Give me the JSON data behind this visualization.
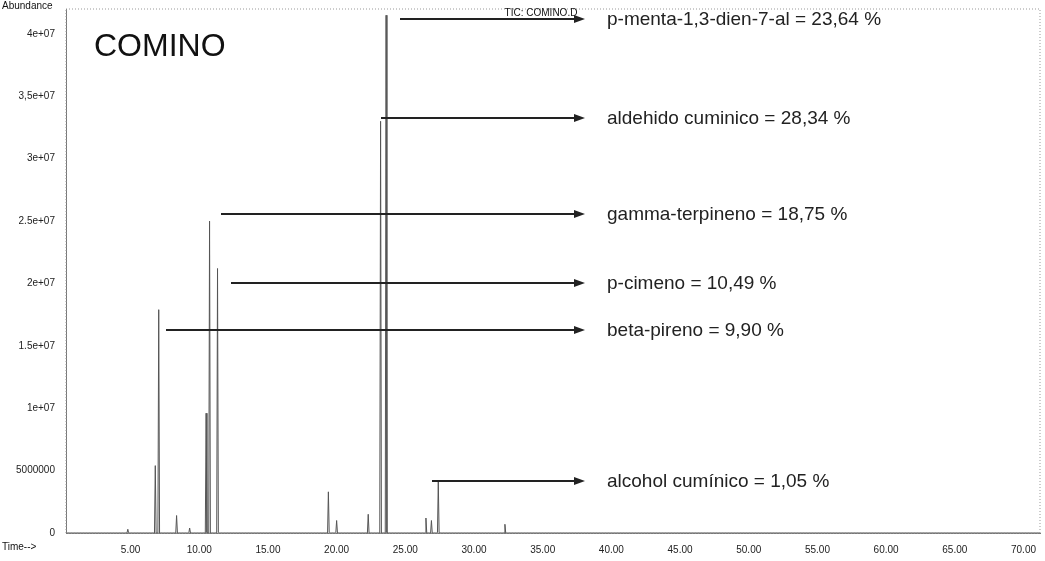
{
  "chart_data": {
    "type": "line",
    "title": "COMINO",
    "subtitle": "TIC: COMINO.D",
    "xlabel": "Time-->",
    "ylabel": "Abundance",
    "x": [
      0.3,
      4.74,
      4.8,
      4.86,
      6.74,
      6.8,
      6.86,
      6.99,
      7.05,
      7.11,
      8.29,
      8.35,
      8.41,
      9.24,
      9.3,
      9.36,
      10.44,
      10.5,
      10.56,
      10.69,
      10.75,
      10.81,
      11.27,
      11.33,
      11.39,
      19.34,
      19.4,
      19.46,
      19.94,
      20.0,
      20.06,
      22.24,
      22.3,
      22.36,
      23.14,
      23.2,
      23.26,
      23.54,
      23.6,
      23.66,
      26.44,
      26.5,
      26.56,
      26.84,
      26.9,
      26.96,
      27.34,
      27.4,
      27.46,
      32.19,
      32.25,
      32.31,
      71.2
    ],
    "series": [
      {
        "color": "#555555",
        "values": [
          0,
          0,
          300000,
          0,
          0,
          5400000,
          0,
          0,
          17900000,
          0,
          0,
          1400000,
          0,
          0,
          400000,
          0,
          0,
          9600000,
          0,
          0,
          25000000,
          0,
          0,
          21200000,
          0,
          0,
          3300000,
          0,
          0,
          1000000,
          0,
          0,
          1500000,
          0,
          0,
          33000000,
          0,
          0,
          41500000,
          0,
          0,
          1200000,
          0,
          0,
          1000000,
          0,
          0,
          4100000,
          0,
          0,
          700000,
          0,
          0
        ]
      }
    ],
    "xlim": [
      0.3,
      71.2
    ],
    "ylim": [
      0,
      42000000
    ],
    "xticks": [
      {
        "value": 5,
        "label": "5.00"
      },
      {
        "value": 10,
        "label": "10.00"
      },
      {
        "value": 15,
        "label": "15.00"
      },
      {
        "value": 20,
        "label": "20.00"
      },
      {
        "value": 25,
        "label": "25.00"
      },
      {
        "value": 30,
        "label": "30.00"
      },
      {
        "value": 35,
        "label": "35.00"
      },
      {
        "value": 40,
        "label": "40.00"
      },
      {
        "value": 45,
        "label": "45.00"
      },
      {
        "value": 50,
        "label": "50.00"
      },
      {
        "value": 55,
        "label": "55.00"
      },
      {
        "value": 60,
        "label": "60.00"
      },
      {
        "value": 65,
        "label": "65.00"
      },
      {
        "value": 70,
        "label": "70.00"
      }
    ],
    "yticks": [
      0,
      5000000,
      {
        "value": 10000000,
        "label": "1e+07"
      },
      {
        "value": 15000000,
        "label": "1.5e+07"
      },
      {
        "value": 20000000,
        "label": "2e+07"
      },
      {
        "value": 25000000,
        "label": "2.5e+07"
      },
      {
        "value": 30000000,
        "label": "3e+07"
      },
      {
        "value": 35000000,
        "label": "3,5e+07"
      },
      {
        "value": 40000000,
        "label": "4e+07"
      }
    ],
    "grid": false,
    "legend": false,
    "marker": "none",
    "annotations": [
      "p-menta-1,3-dien-7-al = 23,64 %",
      "aldehido cuminico = 28,34 %",
      "gamma-terpineno = 18,75 %",
      "p-cimeno = 10,49 %",
      "beta-pireno = 9,90 %",
      "alcohol cumínico = 1,05 %"
    ]
  }
}
